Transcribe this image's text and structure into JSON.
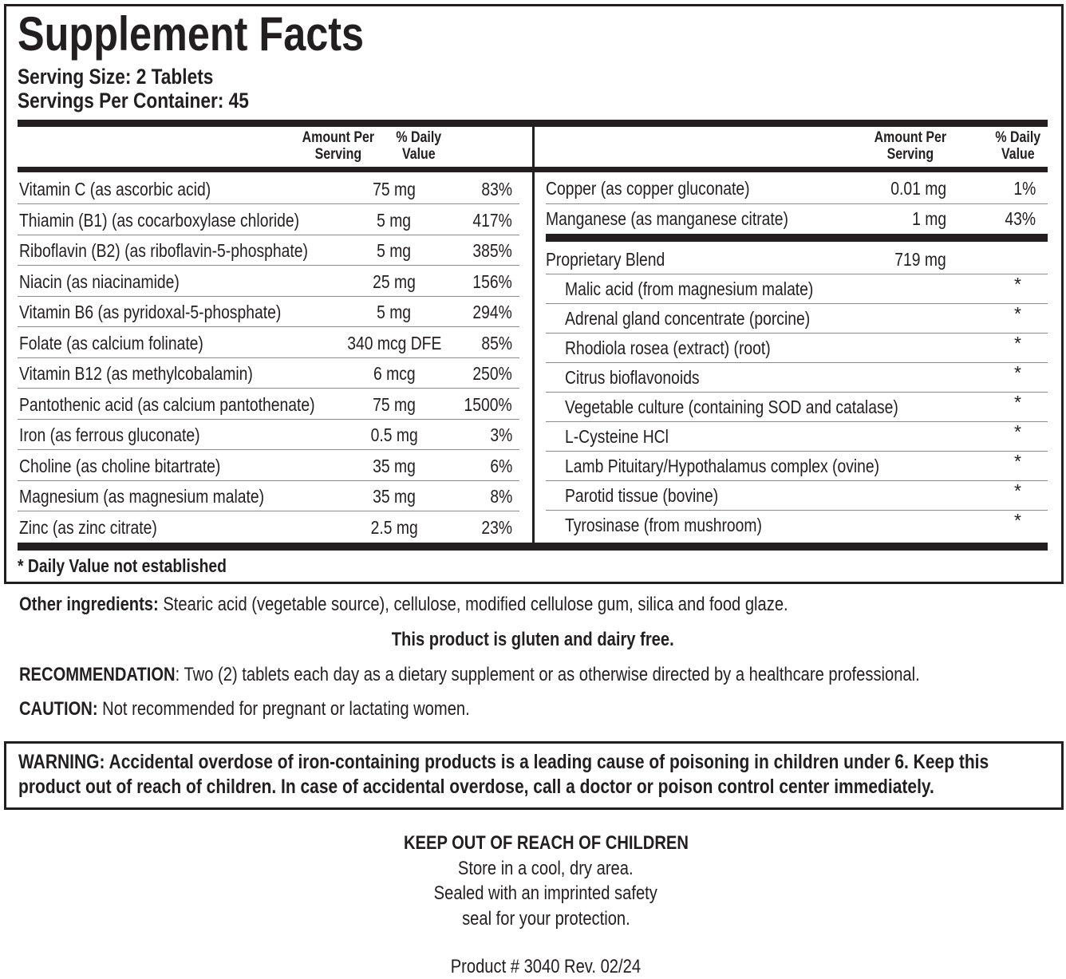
{
  "title": "Supplement Facts",
  "serving_size": "Serving Size: 2 Tablets",
  "servings_per_container": "Servings Per Container: 45",
  "header": {
    "amount_l1": "Amount Per",
    "amount_l2": "Serving",
    "dv_l1": "% Daily",
    "dv_l2": "Value"
  },
  "left_rows": [
    {
      "name": "Vitamin C (as ascorbic acid)",
      "amount": "75 mg",
      "dv": "83%"
    },
    {
      "name": "Thiamin (B1) (as cocarboxylase chloride)",
      "amount": "5 mg",
      "dv": "417%"
    },
    {
      "name": "Riboflavin (B2) (as riboflavin-5-phosphate)",
      "amount": "5 mg",
      "dv": "385%"
    },
    {
      "name": "Niacin (as niacinamide)",
      "amount": "25 mg",
      "dv": "156%"
    },
    {
      "name": "Vitamin B6 (as pyridoxal-5-phosphate)",
      "amount": "5 mg",
      "dv": "294%"
    },
    {
      "name": "Folate (as calcium folinate)",
      "amount": "340 mcg DFE",
      "dv": "85%"
    },
    {
      "name": "Vitamin B12 (as methylcobalamin)",
      "amount": "6 mcg",
      "dv": "250%"
    },
    {
      "name": "Pantothenic acid (as calcium pantothenate)",
      "amount": "75 mg",
      "dv": "1500%"
    },
    {
      "name": "Iron (as ferrous gluconate)",
      "amount": "0.5 mg",
      "dv": "3%"
    },
    {
      "name": "Choline (as choline bitartrate)",
      "amount": "35 mg",
      "dv": "6%"
    },
    {
      "name": "Magnesium (as magnesium malate)",
      "amount": "35 mg",
      "dv": "8%"
    },
    {
      "name": "Zinc (as zinc citrate)",
      "amount": "2.5 mg",
      "dv": "23%"
    }
  ],
  "right_rows": [
    {
      "name": "Copper (as copper gluconate)",
      "amount": "0.01 mg",
      "dv": "1%"
    },
    {
      "name": "Manganese (as manganese citrate)",
      "amount": "1 mg",
      "dv": "43%"
    }
  ],
  "blend": {
    "name": "Proprietary Blend",
    "amount": "719 mg",
    "items": [
      {
        "name": "Malic acid (from magnesium malate)",
        "dv": "*"
      },
      {
        "name": "Adrenal gland concentrate (porcine)",
        "dv": "*"
      },
      {
        "name": "Rhodiola rosea (extract) (root)",
        "dv": "*"
      },
      {
        "name": "Citrus bioflavonoids",
        "dv": "*"
      },
      {
        "name": "Vegetable culture (containing SOD and catalase)",
        "dv": "*"
      },
      {
        "name": "L-Cysteine HCl",
        "dv": "*"
      },
      {
        "name": "Lamb Pituitary/Hypothalamus complex (ovine)",
        "dv": "*"
      },
      {
        "name": "Parotid tissue (bovine)",
        "dv": "*"
      },
      {
        "name": "Tyrosinase (from mushroom)",
        "dv": "*"
      }
    ]
  },
  "footnote": "* Daily Value not established",
  "other_label": "Other ingredients:",
  "other_text": " Stearic acid (vegetable source), cellulose, modified cellulose gum, silica and food glaze.",
  "gluten": "This product is gluten and dairy free.",
  "rec_label": "RECOMMENDATION",
  "rec_text": ": Two (2) tablets each day as a dietary supplement or as otherwise directed by a healthcare professional.",
  "caution_label": "CAUTION:",
  "caution_text": " Not recommended for pregnant or lactating women.",
  "warning_l1": "WARNING: Accidental overdose of iron-containing products is a leading cause of poisoning in children under 6. Keep this",
  "warning_l2": "product out of reach of children. In case of accidental overdose, call a doctor or poison control center immediately.",
  "keep_out": "KEEP OUT OF REACH OF CHILDREN",
  "store": "Store in a cool, dry area.",
  "sealed_l1": "Sealed with an imprinted safety",
  "sealed_l2": "seal for your protection.",
  "product": "Product # 3040  Rev. 02/24"
}
